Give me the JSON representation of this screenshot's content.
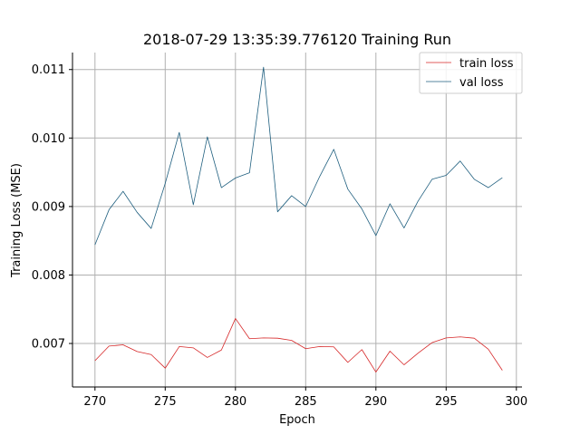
{
  "chart_data": {
    "type": "line",
    "title": "2018-07-29 13:35:39.776120 Training Run",
    "xlabel": "Epoch",
    "ylabel": "Training Loss (MSE)",
    "xlim": [
      268.4,
      300.4
    ],
    "ylim": [
      0.006365,
      0.011248
    ],
    "xticks": [
      270,
      275,
      280,
      285,
      290,
      295,
      300
    ],
    "xtick_labels": [
      "270",
      "275",
      "280",
      "285",
      "290",
      "295",
      "300"
    ],
    "yticks": [
      0.007,
      0.008,
      0.009,
      0.01,
      0.011
    ],
    "ytick_labels": [
      "0.007",
      "0.008",
      "0.009",
      "0.010",
      "0.011"
    ],
    "grid": true,
    "legend_position": "top-right",
    "x": [
      270,
      271,
      272,
      273,
      274,
      275,
      276,
      277,
      278,
      279,
      280,
      281,
      282,
      283,
      284,
      285,
      286,
      287,
      288,
      289,
      290,
      291,
      292,
      293,
      294,
      295,
      296,
      297,
      298,
      299
    ],
    "series": [
      {
        "name": "train loss",
        "color": "#d62728",
        "values": [
          0.006749,
          0.006962,
          0.00698,
          0.006883,
          0.006838,
          0.00664,
          0.006955,
          0.006936,
          0.006796,
          0.006904,
          0.007365,
          0.00707,
          0.007081,
          0.007077,
          0.007045,
          0.006924,
          0.006955,
          0.006951,
          0.006724,
          0.006911,
          0.006583,
          0.006888,
          0.006689,
          0.006859,
          0.007013,
          0.007081,
          0.007096,
          0.007077,
          0.006917,
          0.006608
        ]
      },
      {
        "name": "val loss",
        "color": "#1f5f7f",
        "values": [
          0.008441,
          0.008953,
          0.009222,
          0.008915,
          0.00868,
          0.009337,
          0.010082,
          0.009026,
          0.010017,
          0.009276,
          0.009417,
          0.009493,
          0.011035,
          0.008923,
          0.009158,
          0.009,
          0.00944,
          0.009835,
          0.009254,
          0.008965,
          0.008575,
          0.00904,
          0.008687,
          0.009079,
          0.009398,
          0.009455,
          0.009664,
          0.009398,
          0.009276,
          0.009421
        ]
      }
    ]
  }
}
